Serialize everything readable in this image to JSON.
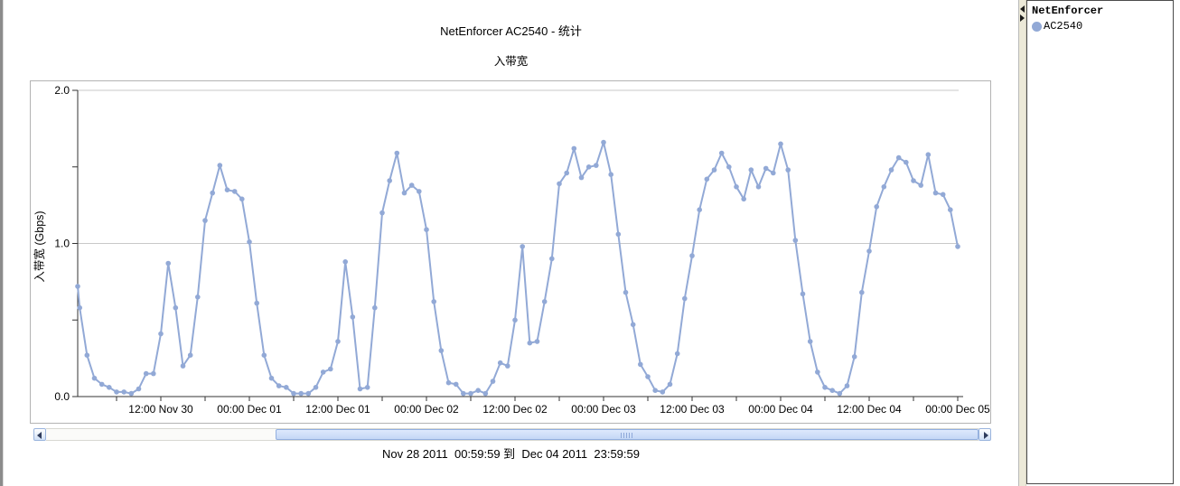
{
  "header": {
    "title": "NetEnforcer AC2540 - 统计"
  },
  "footer": {
    "range_text": "Nov 28 2011  00:59:59 到  Dec 04 2011  23:59:59"
  },
  "legend": {
    "title": "NetEnforcer",
    "items": [
      {
        "label": "AC2540",
        "color": "#92a9d6"
      }
    ]
  },
  "scrollbar": {
    "orientation": "horizontal",
    "thumb_position": "right-three-quarters"
  },
  "colors": {
    "series_line": "#92a9d6",
    "grid": "#c9c9c9",
    "axis": "#333333",
    "frame": "#b3b3b3",
    "splitter_bg": "#ece9d8"
  },
  "chart_data": {
    "type": "line",
    "title": "入带宽",
    "window_title": "NetEnforcer AC2540 - 统计",
    "xlabel": "",
    "ylabel": "入带宽 (Gbps)",
    "ylim": [
      0,
      2
    ],
    "yticks": [
      0,
      0.5,
      1,
      1.5,
      2
    ],
    "ytick_labels": [
      {
        "v": 0,
        "label": "0.0"
      },
      {
        "v": 1,
        "label": "1.0"
      },
      {
        "v": 2,
        "label": "2.0"
      }
    ],
    "grid_y_values": [
      1,
      2
    ],
    "legend_position": "right-panel",
    "x_unit": "hours since Nov 30 2011 00:00 (visible scrolled window)",
    "x_tick_step_hours": 6,
    "x_tick_labels": [
      {
        "t": 12,
        "label": "12:00 Nov 30"
      },
      {
        "t": 24,
        "label": "00:00 Dec 01"
      },
      {
        "t": 36,
        "label": "12:00 Dec 01"
      },
      {
        "t": 48,
        "label": "00:00 Dec 02"
      },
      {
        "t": 60,
        "label": "12:00 Dec 02"
      },
      {
        "t": 72,
        "label": "00:00 Dec 03"
      },
      {
        "t": 84,
        "label": "12:00 Dec 03"
      },
      {
        "t": 96,
        "label": "00:00 Dec 04"
      },
      {
        "t": 108,
        "label": "12:00 Dec 04"
      },
      {
        "t": 120,
        "label": "00:00 Dec 05"
      }
    ],
    "series": [
      {
        "name": "AC2540",
        "color": "#92a9d6",
        "x_hours": [
          0.73,
          1,
          2,
          3,
          4,
          5,
          6,
          7,
          8,
          9,
          10,
          11,
          12,
          13,
          14,
          15,
          16,
          17,
          18,
          19,
          20,
          21,
          22,
          23,
          24,
          25,
          26,
          27,
          28,
          29,
          30,
          31,
          32,
          33,
          34,
          35,
          36,
          37,
          38,
          39,
          40,
          41,
          42,
          43,
          44,
          45,
          46,
          47,
          48,
          49,
          50,
          51,
          52,
          53,
          54,
          55,
          56,
          57,
          58,
          59,
          60,
          61,
          62,
          63,
          64,
          65,
          66,
          67,
          68,
          69,
          70,
          71,
          72,
          73,
          74,
          75,
          76,
          77,
          78,
          79,
          80,
          81,
          82,
          83,
          84,
          85,
          86,
          87,
          88,
          89,
          90,
          91,
          92,
          93,
          94,
          95,
          96,
          97,
          98,
          99,
          100,
          101,
          102,
          103,
          104,
          105,
          106,
          107,
          108,
          109,
          110,
          111,
          112,
          113,
          114,
          115,
          116,
          117,
          118,
          119,
          120
        ],
        "gbps": [
          0.72,
          0.58,
          0.27,
          0.12,
          0.08,
          0.06,
          0.03,
          0.03,
          0.02,
          0.05,
          0.15,
          0.15,
          0.41,
          0.87,
          0.58,
          0.2,
          0.27,
          0.65,
          1.15,
          1.33,
          1.51,
          1.35,
          1.34,
          1.29,
          1.01,
          0.61,
          0.27,
          0.12,
          0.07,
          0.06,
          0.02,
          0.02,
          0.02,
          0.06,
          0.16,
          0.18,
          0.36,
          0.88,
          0.52,
          0.05,
          0.06,
          0.58,
          1.2,
          1.41,
          1.59,
          1.33,
          1.38,
          1.34,
          1.09,
          0.62,
          0.3,
          0.09,
          0.08,
          0.02,
          0.02,
          0.04,
          0.02,
          0.1,
          0.22,
          0.2,
          0.5,
          0.98,
          0.35,
          0.36,
          0.62,
          0.9,
          1.39,
          1.46,
          1.62,
          1.43,
          1.5,
          1.51,
          1.66,
          1.45,
          1.06,
          0.68,
          0.47,
          0.21,
          0.13,
          0.04,
          0.03,
          0.08,
          0.28,
          0.64,
          0.92,
          1.22,
          1.42,
          1.48,
          1.59,
          1.5,
          1.37,
          1.29,
          1.48,
          1.37,
          1.49,
          1.46,
          1.65,
          1.48,
          1.02,
          0.67,
          0.36,
          0.16,
          0.06,
          0.04,
          0.02,
          0.07,
          0.26,
          0.68,
          0.95,
          1.24,
          1.37,
          1.48,
          1.56,
          1.53,
          1.41,
          1.38,
          1.58,
          1.33,
          1.32,
          1.22,
          0.98
        ]
      }
    ]
  }
}
